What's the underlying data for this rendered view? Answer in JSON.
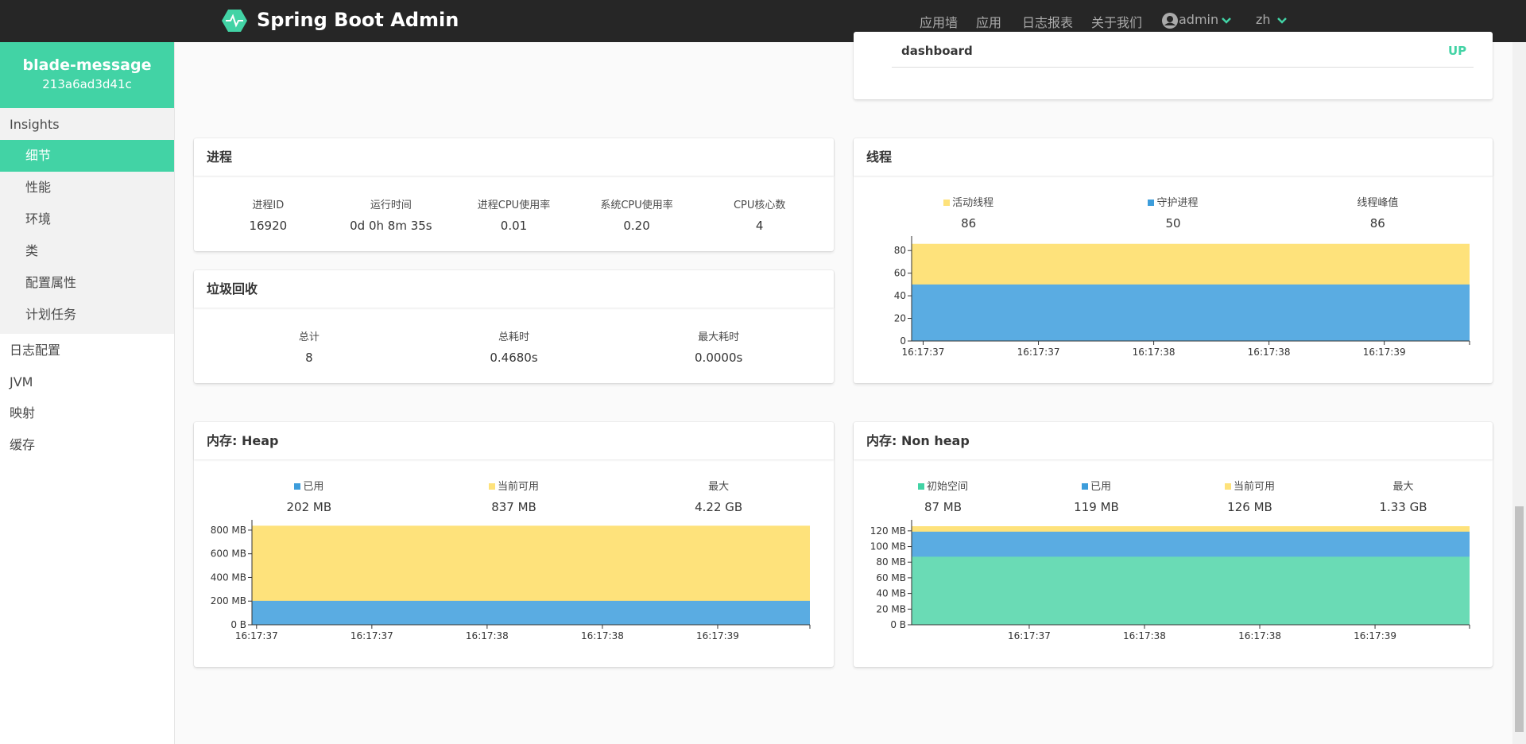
{
  "navbar": {
    "brand": "Spring Boot Admin",
    "links": [
      "应用墙",
      "应用",
      "日志报表",
      "关于我们"
    ],
    "user": "admin",
    "lang": "zh"
  },
  "sidebar": {
    "app_name": "blade-message",
    "instance_id": "213a6ad3d41c",
    "section": "Insights",
    "section_items": [
      "细节",
      "性能",
      "环境",
      "类",
      "配置属性",
      "计划任务"
    ],
    "items": [
      "日志配置",
      "JVM",
      "映射",
      "缓存"
    ]
  },
  "health": {
    "name": "dashboard",
    "status": "UP"
  },
  "process": {
    "title": "进程",
    "stats": [
      {
        "label": "进程ID",
        "value": "16920"
      },
      {
        "label": "运行时间",
        "value": "0d 0h 8m 35s"
      },
      {
        "label": "进程CPU使用率",
        "value": "0.01"
      },
      {
        "label": "系统CPU使用率",
        "value": "0.20"
      },
      {
        "label": "CPU核心数",
        "value": "4"
      }
    ]
  },
  "gc": {
    "title": "垃圾回收",
    "stats": [
      {
        "label": "总计",
        "value": "8"
      },
      {
        "label": "总耗时",
        "value": "0.4680s"
      },
      {
        "label": "最大耗时",
        "value": "0.0000s"
      }
    ]
  },
  "threads": {
    "title": "线程",
    "stats": [
      {
        "label": "活动线程",
        "value": "86",
        "color": "#fee27b"
      },
      {
        "label": "守护进程",
        "value": "50",
        "color": "#3d9ddb"
      },
      {
        "label": "线程峰值",
        "value": "86"
      }
    ],
    "chart": {
      "type": "area",
      "x": [
        37.0,
        37.5,
        38.0,
        38.5,
        39.0,
        39.42
      ],
      "xlim": [
        37.0,
        39.42
      ],
      "xticks": [
        {
          "value": 37.05,
          "label": "16:17:37"
        },
        {
          "value": 37.55,
          "label": "16:17:37"
        },
        {
          "value": 38.05,
          "label": "16:17:38"
        },
        {
          "value": 38.55,
          "label": "16:17:38"
        },
        {
          "value": 39.05,
          "label": "16:17:39"
        }
      ],
      "ylim": [
        0,
        90
      ],
      "yticks": [
        0,
        20,
        40,
        60,
        80
      ],
      "series": [
        {
          "color": "#fee27b",
          "values": [
            86,
            86,
            86,
            86,
            86,
            86
          ]
        },
        {
          "color": "#5aace2",
          "values": [
            50,
            50,
            50,
            50,
            50,
            50
          ]
        }
      ]
    }
  },
  "heap": {
    "title": "内存: Heap",
    "stats": [
      {
        "label": "已用",
        "value": "202 MB",
        "color": "#3d9ddb"
      },
      {
        "label": "当前可用",
        "value": "837 MB",
        "color": "#fee27b"
      },
      {
        "label": "最大",
        "value": "4.22 GB"
      }
    ],
    "chart": {
      "type": "area",
      "x": [
        37.0,
        37.5,
        38.0,
        38.5,
        39.0,
        39.42
      ],
      "xlim": [
        37.0,
        39.42
      ],
      "xticks": [
        {
          "value": 37.02,
          "label": "16:17:37"
        },
        {
          "value": 37.52,
          "label": "16:17:37"
        },
        {
          "value": 38.02,
          "label": "16:17:38"
        },
        {
          "value": 38.52,
          "label": "16:17:38"
        },
        {
          "value": 39.02,
          "label": "16:17:39"
        }
      ],
      "ylim": [
        0,
        860
      ],
      "yticks": [
        {
          "value": 0,
          "label": "0 B"
        },
        {
          "value": 200,
          "label": "200 MB"
        },
        {
          "value": 400,
          "label": "400 MB"
        },
        {
          "value": 600,
          "label": "600 MB"
        },
        {
          "value": 800,
          "label": "800 MB"
        }
      ],
      "series": [
        {
          "color": "#fee27b",
          "values": [
            837,
            837,
            837,
            837,
            837,
            837
          ]
        },
        {
          "color": "#5aace2",
          "values": [
            202,
            202,
            202,
            202,
            202,
            202
          ]
        }
      ]
    }
  },
  "nonheap": {
    "title": "内存: Non heap",
    "stats": [
      {
        "label": "初始空间",
        "value": "87 MB",
        "color": "#42d3a5"
      },
      {
        "label": "已用",
        "value": "119 MB",
        "color": "#3d9ddb"
      },
      {
        "label": "当前可用",
        "value": "126 MB",
        "color": "#fee27b"
      },
      {
        "label": "最大",
        "value": "1.33 GB"
      }
    ],
    "chart": {
      "type": "area",
      "x": [
        37.0,
        37.5,
        38.0,
        38.5,
        39.0,
        39.42
      ],
      "xlim": [
        37.0,
        39.42
      ],
      "xticks": [
        {
          "value": 37.51,
          "label": "16:17:37"
        },
        {
          "value": 38.01,
          "label": "16:17:38"
        },
        {
          "value": 38.51,
          "label": "16:17:38"
        },
        {
          "value": 39.01,
          "label": "16:17:39"
        }
      ],
      "ylim": [
        0,
        130
      ],
      "yticks": [
        {
          "value": 0,
          "label": "0 B"
        },
        {
          "value": 20,
          "label": "20 MB"
        },
        {
          "value": 40,
          "label": "40 MB"
        },
        {
          "value": 60,
          "label": "60 MB"
        },
        {
          "value": 80,
          "label": "80 MB"
        },
        {
          "value": 100,
          "label": "100 MB"
        },
        {
          "value": 120,
          "label": "120 MB"
        }
      ],
      "series": [
        {
          "color": "#fee27b",
          "values": [
            126,
            126,
            126,
            126,
            126,
            126
          ]
        },
        {
          "color": "#5aace2",
          "values": [
            119,
            119,
            119,
            119,
            119,
            119
          ]
        },
        {
          "color": "#6adbb5",
          "values": [
            87,
            87,
            87,
            87,
            87,
            87
          ]
        }
      ]
    }
  }
}
